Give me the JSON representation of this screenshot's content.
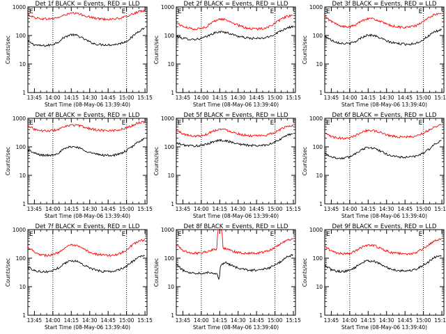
{
  "figure": {
    "ylabel": "Counts/sec",
    "xlabel": "Start Time (08-May-06 13:39:40)",
    "xticks": [
      "13:45",
      "14:00",
      "14:15",
      "14:30",
      "14:45",
      "15:00",
      "15:15"
    ],
    "yticks": [
      "1",
      "10",
      "100",
      "1000"
    ],
    "marker": "E",
    "colors": {
      "events": "#000000",
      "lld": "#ff0000",
      "axes": "#000000"
    }
  },
  "chart_data": [
    {
      "type": "line",
      "title": "Det 1f BLACK = Events, RED = LLD",
      "x_unit": "minutes after 13:39:40",
      "xlim": [
        0,
        97
      ],
      "ylim": [
        1,
        1000
      ],
      "ylog": true,
      "marker_lines": [
        20.33,
        80.33
      ],
      "series": [
        {
          "name": "Events",
          "color": "#000000",
          "x": [
            0,
            5,
            10,
            15,
            20,
            25,
            30,
            35,
            40,
            45,
            50,
            55,
            60,
            65,
            70,
            75,
            80,
            85,
            90,
            95
          ],
          "values": [
            62,
            48,
            44,
            44,
            48,
            60,
            88,
            108,
            100,
            78,
            60,
            50,
            48,
            47,
            48,
            52,
            62,
            88,
            140,
            185
          ]
        },
        {
          "name": "LLD",
          "color": "#ff0000",
          "x": [
            0,
            5,
            10,
            15,
            20,
            25,
            30,
            35,
            40,
            45,
            50,
            55,
            60,
            65,
            70,
            75,
            80,
            85,
            90,
            95
          ],
          "values": [
            540,
            430,
            390,
            380,
            390,
            430,
            520,
            600,
            590,
            520,
            450,
            400,
            380,
            375,
            380,
            400,
            460,
            560,
            680,
            720
          ]
        }
      ]
    },
    {
      "type": "line",
      "title": "Det 2f BLACK = Events, RED = LLD",
      "x_unit": "minutes after 13:39:40",
      "xlim": [
        0,
        97
      ],
      "ylim": [
        1,
        1000
      ],
      "ylog": true,
      "marker_lines": [
        20.33,
        80.33
      ],
      "series": [
        {
          "name": "Events",
          "color": "#000000",
          "x": [
            0,
            5,
            10,
            15,
            20,
            25,
            30,
            35,
            40,
            45,
            50,
            55,
            60,
            65,
            70,
            75,
            80,
            85,
            90,
            95
          ],
          "values": [
            95,
            80,
            75,
            74,
            78,
            92,
            118,
            135,
            130,
            112,
            95,
            85,
            80,
            78,
            80,
            88,
            110,
            145,
            185,
            210
          ]
        },
        {
          "name": "LLD",
          "color": "#ff0000",
          "x": [
            0,
            5,
            10,
            15,
            20,
            25,
            30,
            35,
            40,
            45,
            50,
            55,
            60,
            65,
            70,
            75,
            80,
            85,
            90,
            95
          ],
          "values": [
            280,
            210,
            180,
            170,
            175,
            210,
            300,
            380,
            360,
            290,
            230,
            195,
            175,
            170,
            175,
            200,
            260,
            360,
            470,
            500
          ]
        }
      ]
    },
    {
      "type": "line",
      "title": "Det 3f BLACK = Events, RED = LLD",
      "x_unit": "minutes after 13:39:40",
      "xlim": [
        0,
        97
      ],
      "ylim": [
        1,
        1000
      ],
      "ylog": true,
      "marker_lines": [
        20.33,
        80.33
      ],
      "series": [
        {
          "name": "Events",
          "color": "#000000",
          "x": [
            0,
            5,
            10,
            15,
            20,
            25,
            30,
            35,
            40,
            45,
            50,
            55,
            60,
            65,
            70,
            75,
            80,
            85,
            90,
            95
          ],
          "values": [
            95,
            70,
            58,
            52,
            52,
            60,
            85,
            105,
            100,
            82,
            65,
            56,
            52,
            50,
            50,
            55,
            70,
            100,
            135,
            160
          ]
        },
        {
          "name": "LLD",
          "color": "#ff0000",
          "x": [
            0,
            5,
            10,
            15,
            20,
            25,
            30,
            35,
            40,
            45,
            50,
            55,
            60,
            65,
            70,
            75,
            80,
            85,
            90,
            95
          ],
          "values": [
            450,
            320,
            240,
            205,
            200,
            230,
            330,
            400,
            380,
            310,
            250,
            215,
            200,
            195,
            200,
            225,
            300,
            420,
            560,
            620
          ]
        }
      ]
    },
    {
      "type": "line",
      "title": "Det 4f BLACK = Events, RED = LLD",
      "x_unit": "minutes after 13:39:40",
      "xlim": [
        0,
        97
      ],
      "ylim": [
        1,
        1000
      ],
      "ylog": true,
      "marker_lines": [
        20.33,
        80.33
      ],
      "series": [
        {
          "name": "Events",
          "color": "#000000",
          "x": [
            0,
            5,
            10,
            15,
            20,
            25,
            30,
            35,
            40,
            45,
            50,
            55,
            60,
            65,
            70,
            75,
            80,
            85,
            90,
            95
          ],
          "values": [
            80,
            60,
            52,
            50,
            52,
            62,
            85,
            102,
            98,
            80,
            64,
            56,
            52,
            50,
            51,
            56,
            72,
            100,
            150,
            195
          ]
        },
        {
          "name": "LLD",
          "color": "#ff0000",
          "x": [
            0,
            5,
            10,
            15,
            20,
            25,
            30,
            35,
            40,
            45,
            50,
            55,
            60,
            65,
            70,
            75,
            80,
            85,
            90,
            95
          ],
          "values": [
            560,
            420,
            370,
            360,
            370,
            410,
            500,
            580,
            570,
            500,
            440,
            400,
            380,
            370,
            375,
            400,
            460,
            560,
            700,
            760
          ]
        }
      ]
    },
    {
      "type": "line",
      "title": "Det 5f BLACK = Events, RED = LLD",
      "x_unit": "minutes after 13:39:40",
      "xlim": [
        0,
        97
      ],
      "ylim": [
        1,
        1000
      ],
      "ylog": true,
      "marker_lines": [
        20.33,
        80.33
      ],
      "series": [
        {
          "name": "Events",
          "color": "#000000",
          "x": [
            0,
            5,
            10,
            15,
            20,
            25,
            30,
            35,
            40,
            45,
            50,
            55,
            60,
            65,
            70,
            75,
            80,
            85,
            90,
            95
          ],
          "values": [
            135,
            118,
            110,
            108,
            110,
            125,
            150,
            170,
            165,
            145,
            128,
            118,
            112,
            110,
            112,
            122,
            145,
            185,
            250,
            300
          ]
        },
        {
          "name": "LLD",
          "color": "#ff0000",
          "x": [
            0,
            5,
            10,
            15,
            20,
            25,
            30,
            35,
            40,
            45,
            50,
            55,
            60,
            65,
            70,
            75,
            80,
            85,
            90,
            95
          ],
          "values": [
            380,
            290,
            250,
            240,
            245,
            280,
            360,
            420,
            400,
            340,
            290,
            260,
            245,
            240,
            245,
            265,
            320,
            410,
            520,
            560
          ]
        }
      ]
    },
    {
      "type": "line",
      "title": "Det 6f BLACK = Events, RED = LLD",
      "x_unit": "minutes after 13:39:40",
      "xlim": [
        0,
        97
      ],
      "ylim": [
        1,
        1000
      ],
      "ylog": true,
      "marker_lines": [
        20.33,
        80.33
      ],
      "series": [
        {
          "name": "Events",
          "color": "#000000",
          "x": [
            0,
            5,
            10,
            15,
            20,
            25,
            30,
            35,
            40,
            45,
            50,
            55,
            60,
            65,
            70,
            75,
            80,
            85,
            90,
            95
          ],
          "values": [
            60,
            45,
            40,
            40,
            44,
            58,
            80,
            95,
            90,
            72,
            56,
            48,
            44,
            43,
            44,
            48,
            60,
            82,
            125,
            160
          ]
        },
        {
          "name": "LLD",
          "color": "#ff0000",
          "x": [
            0,
            5,
            10,
            15,
            20,
            25,
            30,
            35,
            40,
            45,
            50,
            55,
            60,
            65,
            70,
            75,
            80,
            85,
            90,
            95
          ],
          "values": [
            290,
            230,
            205,
            200,
            210,
            250,
            330,
            380,
            370,
            320,
            270,
            240,
            225,
            220,
            225,
            245,
            300,
            390,
            520,
            600
          ]
        }
      ]
    },
    {
      "type": "line",
      "title": "Det 7f BLACK = Events, RED = LLD",
      "x_unit": "minutes after 13:39:40",
      "xlim": [
        0,
        97
      ],
      "ylim": [
        1,
        1000
      ],
      "ylog": true,
      "marker_lines": [
        20.33,
        80.33
      ],
      "series": [
        {
          "name": "Events",
          "color": "#000000",
          "x": [
            0,
            5,
            10,
            15,
            20,
            25,
            30,
            35,
            40,
            45,
            50,
            55,
            60,
            65,
            70,
            75,
            80,
            85,
            90,
            95
          ],
          "values": [
            48,
            38,
            34,
            33,
            36,
            46,
            66,
            82,
            78,
            60,
            46,
            38,
            35,
            34,
            35,
            40,
            52,
            75,
            105,
            125
          ]
        },
        {
          "name": "LLD",
          "color": "#ff0000",
          "x": [
            0,
            5,
            10,
            15,
            20,
            25,
            30,
            35,
            40,
            45,
            50,
            55,
            60,
            65,
            70,
            75,
            80,
            85,
            90,
            95
          ],
          "values": [
            250,
            170,
            135,
            125,
            130,
            160,
            230,
            285,
            270,
            210,
            165,
            140,
            130,
            125,
            128,
            145,
            190,
            280,
            390,
            440
          ]
        }
      ]
    },
    {
      "type": "line",
      "title": "Det 8f BLACK = Events, RED = LLD",
      "x_unit": "minutes after 13:39:40",
      "xlim": [
        0,
        97
      ],
      "ylim": [
        1,
        1000
      ],
      "ylog": true,
      "marker_lines": [
        20.33,
        80.33
      ],
      "series": [
        {
          "name": "Events",
          "color": "#000000",
          "x": [
            0,
            5,
            10,
            15,
            20,
            25,
            30,
            33,
            35,
            36,
            40,
            45,
            50,
            55,
            60,
            65,
            70,
            75,
            80,
            85,
            90,
            95
          ],
          "values": [
            60,
            38,
            32,
            30,
            30,
            32,
            30,
            28,
            16,
            60,
            70,
            55,
            45,
            40,
            38,
            38,
            40,
            45,
            55,
            75,
            110,
            130
          ]
        },
        {
          "name": "LLD",
          "color": "#ff0000",
          "x": [
            0,
            5,
            10,
            15,
            20,
            25,
            30,
            33,
            34,
            37,
            38,
            40,
            45,
            50,
            55,
            60,
            65,
            70,
            75,
            80,
            85,
            90,
            95
          ],
          "values": [
            300,
            190,
            155,
            150,
            155,
            170,
            200,
            210,
            1000,
            1000,
            230,
            220,
            180,
            160,
            150,
            148,
            150,
            160,
            180,
            230,
            320,
            420,
            460
          ]
        }
      ]
    },
    {
      "type": "line",
      "title": "Det 9f BLACK = Events, RED = LLD",
      "x_unit": "minutes after 13:39:40",
      "xlim": [
        0,
        97
      ],
      "ylim": [
        1,
        1000
      ],
      "ylog": true,
      "marker_lines": [
        20.33,
        80.33
      ],
      "series": [
        {
          "name": "Events",
          "color": "#000000",
          "x": [
            0,
            5,
            10,
            15,
            20,
            25,
            30,
            35,
            40,
            45,
            50,
            55,
            60,
            65,
            70,
            75,
            80,
            85,
            90,
            95
          ],
          "values": [
            55,
            40,
            35,
            34,
            37,
            48,
            68,
            82,
            78,
            62,
            48,
            40,
            37,
            36,
            37,
            42,
            55,
            78,
            110,
            130
          ]
        },
        {
          "name": "LLD",
          "color": "#ff0000",
          "x": [
            0,
            5,
            10,
            15,
            20,
            25,
            30,
            35,
            40,
            45,
            50,
            55,
            60,
            65,
            70,
            75,
            80,
            85,
            90,
            95
          ],
          "values": [
            260,
            180,
            150,
            140,
            145,
            175,
            240,
            290,
            280,
            225,
            180,
            155,
            145,
            140,
            142,
            160,
            210,
            300,
            420,
            460
          ]
        }
      ]
    }
  ]
}
